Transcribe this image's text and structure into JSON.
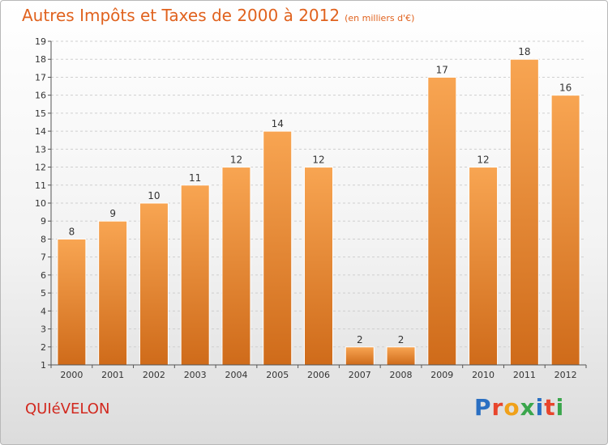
{
  "header": {
    "title": "Autres Impôts et Taxes de 2000 à 2012",
    "unit": "(en milliers d'€)"
  },
  "footer": {
    "place": "QUIéVELON",
    "logo": {
      "letters": [
        "P",
        "r",
        "o",
        "x",
        "i",
        "t",
        "i"
      ],
      "colors": [
        "#2a6fc2",
        "#e8452c",
        "#f0a11a",
        "#3aa64c",
        "#2a6fc2",
        "#e8452c",
        "#3aa64c"
      ]
    }
  },
  "chart_data": {
    "type": "bar",
    "title": "Autres Impôts et Taxes de 2000 à 2012",
    "subtitle": "(en milliers d'€)",
    "categories": [
      "2000",
      "2001",
      "2002",
      "2003",
      "2004",
      "2005",
      "2006",
      "2007",
      "2008",
      "2009",
      "2010",
      "2011",
      "2012"
    ],
    "values": [
      8,
      9,
      10,
      11,
      12,
      14,
      12,
      2,
      2,
      17,
      12,
      18,
      16
    ],
    "ylim": [
      1,
      19
    ],
    "yticks": [
      1,
      2,
      3,
      4,
      5,
      6,
      7,
      8,
      9,
      10,
      11,
      12,
      13,
      14,
      15,
      16,
      17,
      18,
      19
    ],
    "grid": true,
    "bar_color": "#f29a3c"
  }
}
